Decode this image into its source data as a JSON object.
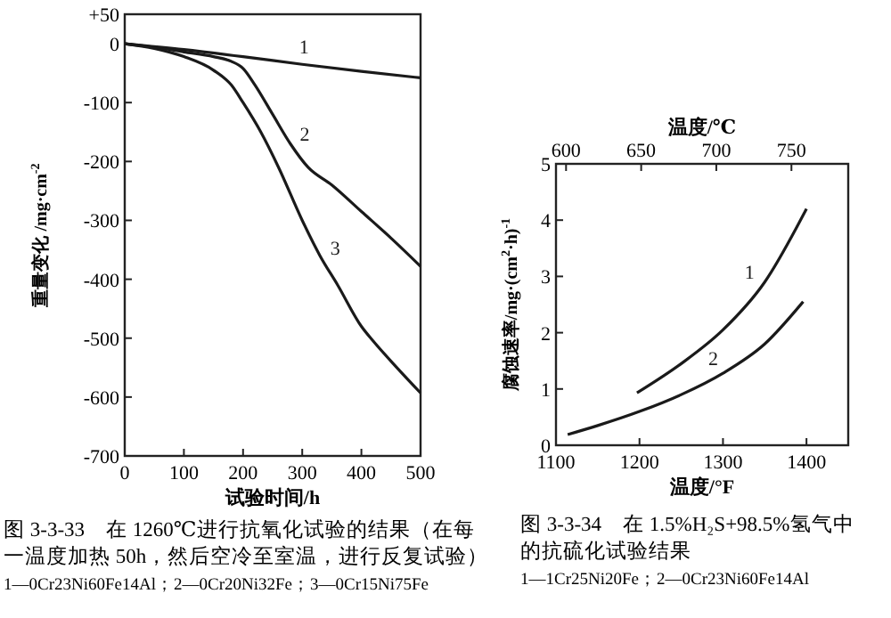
{
  "chart_data": [
    {
      "type": "line",
      "title": "图 3-3-33　在 1260℃进行抗氧化试验的结果（在每一温度加热 50h，然后空冷至室温，进行反复试验）",
      "annotations": [
        "1—0Cr23Ni60Fe14Al；2—0Cr20Ni32Fe；3—0Cr15Ni75Fe"
      ],
      "xlabel": "试验时间/h",
      "ylabel": "重量变化 /mg·cm$^{-2}$",
      "xlim": [
        0,
        500
      ],
      "xticks": [
        0,
        100,
        200,
        300,
        400,
        500
      ],
      "ylim": [
        -700,
        50
      ],
      "yticks": [
        {
          "value": 50,
          "label": "+50"
        },
        0,
        -100,
        -200,
        -300,
        -400,
        -500,
        -600,
        -700
      ],
      "marker": "none",
      "line_style": "solid",
      "series": [
        {
          "name": "1",
          "color": "#1a1a1a",
          "x": [
            0,
            100,
            200,
            300,
            400,
            500
          ],
          "values": [
            0,
            -10,
            -22,
            -35,
            -47,
            -58
          ]
        },
        {
          "name": "2",
          "color": "#1a1a1a",
          "x": [
            0,
            50,
            100,
            150,
            180,
            200,
            220,
            250,
            280,
            310,
            350,
            400,
            450,
            500
          ],
          "values": [
            0,
            -6,
            -14,
            -22,
            -30,
            -42,
            -70,
            -120,
            -170,
            -210,
            -240,
            -285,
            -330,
            -378
          ]
        },
        {
          "name": "3",
          "color": "#1a1a1a",
          "x": [
            0,
            50,
            100,
            150,
            180,
            200,
            230,
            260,
            300,
            330,
            360,
            400,
            420,
            460,
            500
          ],
          "values": [
            0,
            -8,
            -22,
            -45,
            -70,
            -100,
            -150,
            -210,
            -300,
            -360,
            -410,
            -480,
            -505,
            -550,
            -593
          ]
        }
      ]
    },
    {
      "type": "line",
      "title": "图 3-3-34　在 1.5%H₂S+98.5%氢气中的抗硫化试验结果",
      "annotations": [
        "1—1Cr25Ni20Fe；2—0Cr23Ni60Fe14Al"
      ],
      "xlabel": "温度/°F",
      "x2label": "温度/℃",
      "ylabel": "腐蚀速率/mg·(cm$^{2}$·h)$^{-1}$",
      "xlim": [
        1100,
        1450
      ],
      "xticks": [
        1100,
        1200,
        1300,
        1400
      ],
      "x2lim": [
        593.3,
        787.8
      ],
      "x2ticks": [
        600,
        650,
        700,
        750
      ],
      "ylim": [
        0,
        5
      ],
      "yticks": [
        0,
        1,
        2,
        3,
        4,
        5
      ],
      "marker": "none",
      "line_style": "solid",
      "series": [
        {
          "name": "1",
          "color": "#1a1a1a",
          "x": [
            1197,
            1250,
            1300,
            1350,
            1400
          ],
          "values": [
            0.93,
            1.45,
            2.05,
            2.9,
            4.2
          ]
        },
        {
          "name": "2",
          "color": "#1a1a1a",
          "x": [
            1114,
            1150,
            1200,
            1250,
            1300,
            1350,
            1396
          ],
          "values": [
            0.19,
            0.35,
            0.6,
            0.9,
            1.28,
            1.8,
            2.55
          ]
        }
      ]
    }
  ]
}
